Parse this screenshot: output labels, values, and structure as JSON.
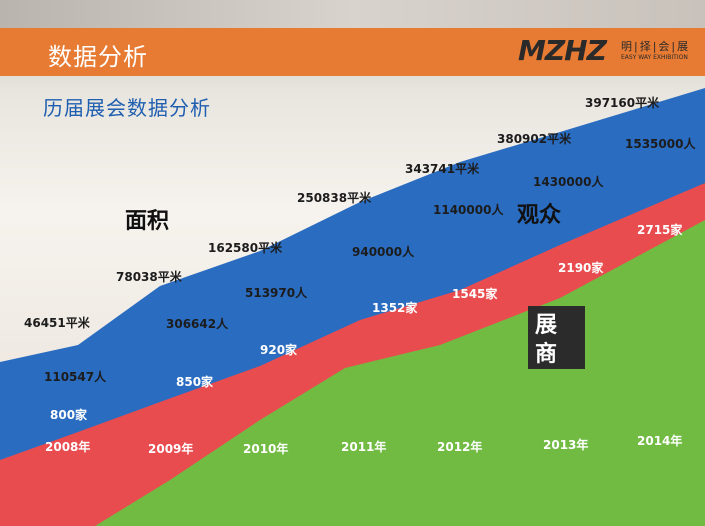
{
  "header": {
    "title": "数据分析"
  },
  "logo": {
    "mark": "MZHZ",
    "cn": "明|择|会|展",
    "en": "EASY WAY EXHIBITION"
  },
  "subtitle": "历届展会数据分析",
  "chart_data": {
    "type": "area",
    "title": "历届展会数据分析",
    "categories": [
      "2008年",
      "2009年",
      "2010年",
      "2011年",
      "2012年",
      "2013年",
      "2014年"
    ],
    "series": [
      {
        "name": "面积",
        "unit": "平米",
        "color": "#2a6cc0",
        "values": [
          46451,
          78038,
          162580,
          250838,
          343741,
          380902,
          397160
        ],
        "labels": [
          "46451平米",
          "78038平米",
          "162580平米",
          "250838平米",
          "343741平米",
          "380902平米",
          "397160平米"
        ]
      },
      {
        "name": "观众",
        "unit": "人",
        "color": "#2a6cc0",
        "values": [
          110547,
          306642,
          513970,
          940000,
          1140000,
          1430000,
          1535000
        ],
        "labels": [
          "110547人",
          "306642人",
          "513970人",
          "940000人",
          "1140000人",
          "1430000人",
          "1535000人"
        ]
      },
      {
        "name": "展商",
        "unit": "家",
        "color": "#e84c4f",
        "values": [
          800,
          850,
          920,
          1352,
          1545,
          2190,
          2715
        ],
        "labels": [
          "800家",
          "850家",
          "920家",
          "1352家",
          "1545家",
          "2190家",
          "2715家"
        ]
      }
    ],
    "colors": {
      "blue": "#2a6cc0",
      "red": "#e84c4f",
      "green": "#71bb43",
      "label_box": "#2b2b2b"
    }
  }
}
